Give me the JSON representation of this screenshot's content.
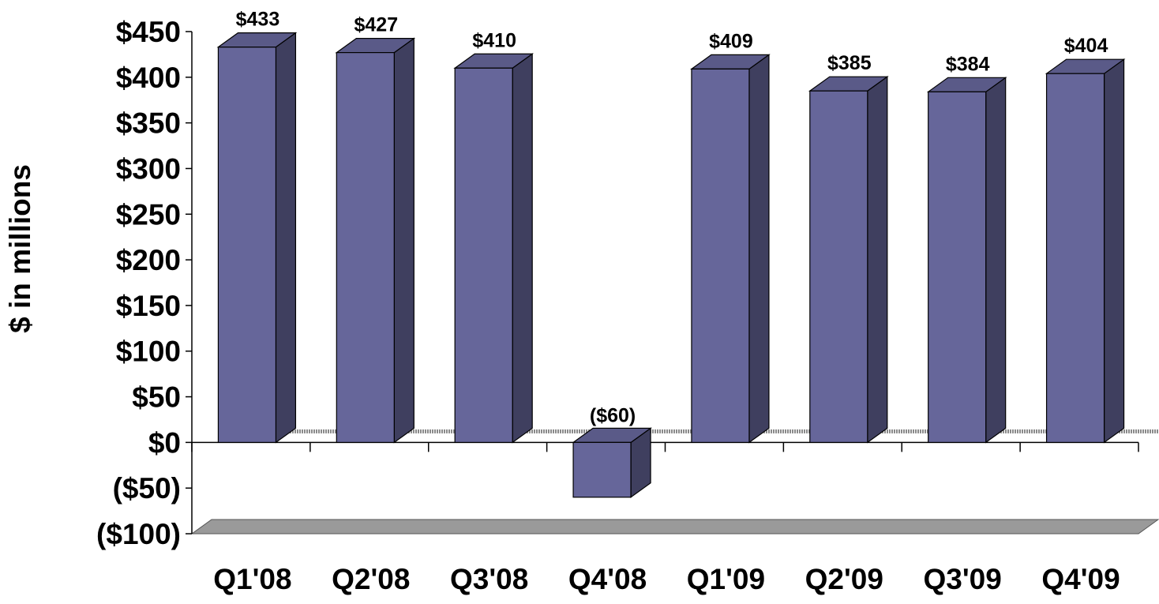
{
  "chart_data": {
    "type": "bar",
    "categories": [
      "Q1'08",
      "Q2'08",
      "Q3'08",
      "Q4'08",
      "Q1'09",
      "Q2'09",
      "Q3'09",
      "Q4'09"
    ],
    "series": [
      {
        "values": [
          433,
          427,
          410,
          -60,
          409,
          385,
          384,
          404
        ]
      }
    ],
    "data_labels": [
      "$433",
      "$427",
      "$410",
      "($60)",
      "$409",
      "$385",
      "$384",
      "$404"
    ],
    "ylabel": "$ in millions",
    "ylim": [
      -100,
      450
    ],
    "yticks": [
      450,
      400,
      350,
      300,
      250,
      200,
      150,
      100,
      50,
      0,
      -50,
      -100
    ],
    "ytick_labels": [
      "$450",
      "$400",
      "$350",
      "$300",
      "$250",
      "$200",
      "$150",
      "$100",
      "$50",
      "$0",
      "($50)",
      "($100)"
    ],
    "style": "3d-column",
    "grid": false,
    "colors": {
      "bar_front": "#66669a",
      "bar_side": "#3f3f5f",
      "bar_top": "#5a5a88",
      "outline": "#000000",
      "floor": "#9a9a9a"
    }
  }
}
